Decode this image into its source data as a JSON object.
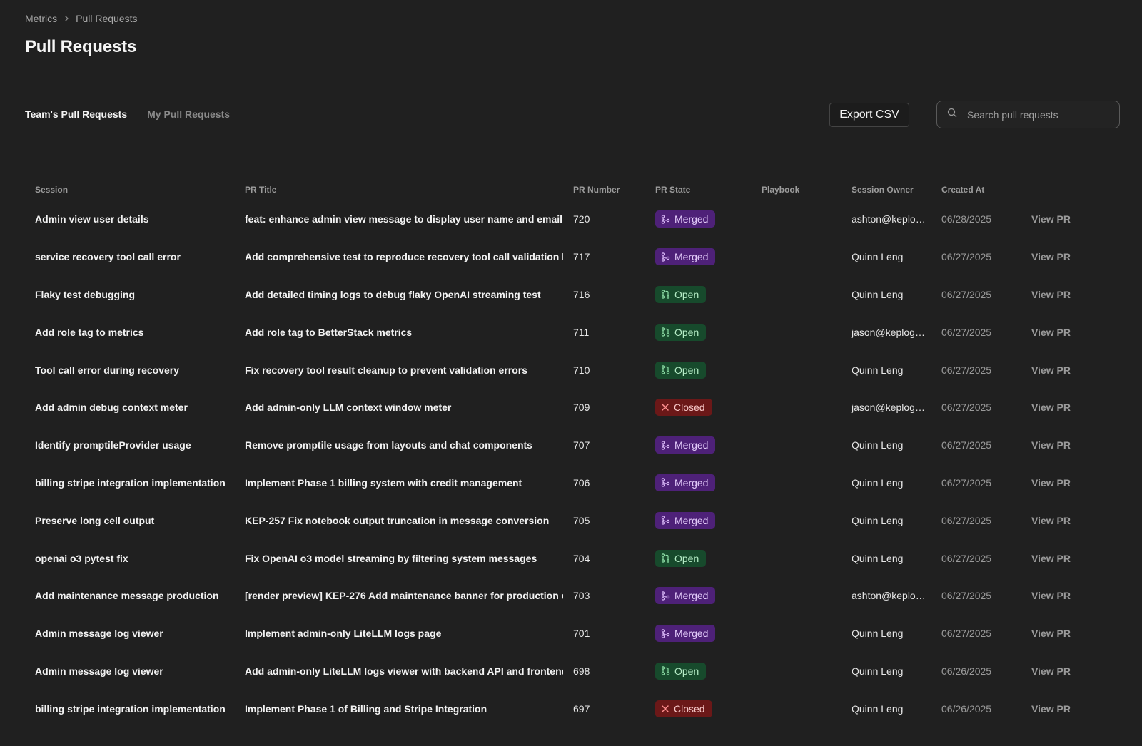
{
  "breadcrumb": {
    "parent": "Metrics",
    "current": "Pull Requests"
  },
  "page": {
    "title": "Pull Requests"
  },
  "tabs": [
    {
      "label": "Team's Pull Requests",
      "active": true
    },
    {
      "label": "My Pull Requests",
      "active": false
    }
  ],
  "toolbar": {
    "export_label": "Export CSV"
  },
  "search": {
    "placeholder": "Search pull requests",
    "value": ""
  },
  "colors": {
    "merged": "#4e2178",
    "open": "#174a2c",
    "closed": "#6b1818",
    "background": "#202020"
  },
  "table": {
    "headers": [
      "Session",
      "PR Title",
      "PR Number",
      "PR State",
      "Playbook",
      "Session Owner",
      "Created At",
      ""
    ],
    "rows": [
      {
        "session": "Admin view user details",
        "title": "feat: enhance admin view message to display user name and email",
        "number": "720",
        "state": "Merged",
        "playbook": "",
        "owner": "ashton@keplogi...",
        "created": "06/28/2025",
        "action": "View PR"
      },
      {
        "session": "service recovery tool call error",
        "title": "Add comprehensive test to reproduce recovery tool call validation b",
        "number": "717",
        "state": "Merged",
        "playbook": "",
        "owner": "Quinn Leng",
        "created": "06/27/2025",
        "action": "View PR"
      },
      {
        "session": "Flaky test debugging",
        "title": "Add detailed timing logs to debug flaky OpenAI streaming test",
        "number": "716",
        "state": "Open",
        "playbook": "",
        "owner": "Quinn Leng",
        "created": "06/27/2025",
        "action": "View PR"
      },
      {
        "session": "Add role tag to metrics",
        "title": "Add role tag to BetterStack metrics",
        "number": "711",
        "state": "Open",
        "playbook": "",
        "owner": "jason@keplogic....",
        "created": "06/27/2025",
        "action": "View PR"
      },
      {
        "session": "Tool call error during recovery",
        "title": "Fix recovery tool result cleanup to prevent validation errors",
        "number": "710",
        "state": "Open",
        "playbook": "",
        "owner": "Quinn Leng",
        "created": "06/27/2025",
        "action": "View PR"
      },
      {
        "session": "Add admin debug context meter",
        "title": "Add admin-only LLM context window meter",
        "number": "709",
        "state": "Closed",
        "playbook": "",
        "owner": "jason@keplogic....",
        "created": "06/27/2025",
        "action": "View PR"
      },
      {
        "session": "Identify promptileProvider usage",
        "title": "Remove promptile usage from layouts and chat components",
        "number": "707",
        "state": "Merged",
        "playbook": "",
        "owner": "Quinn Leng",
        "created": "06/27/2025",
        "action": "View PR"
      },
      {
        "session": "billing stripe integration implementation",
        "title": "Implement Phase 1 billing system with credit management",
        "number": "706",
        "state": "Merged",
        "playbook": "",
        "owner": "Quinn Leng",
        "created": "06/27/2025",
        "action": "View PR"
      },
      {
        "session": "Preserve long cell output",
        "title": "KEP-257 Fix notebook output truncation in message conversion",
        "number": "705",
        "state": "Merged",
        "playbook": "",
        "owner": "Quinn Leng",
        "created": "06/27/2025",
        "action": "View PR"
      },
      {
        "session": "openai o3 pytest fix",
        "title": "Fix OpenAI o3 model streaming by filtering system messages",
        "number": "704",
        "state": "Open",
        "playbook": "",
        "owner": "Quinn Leng",
        "created": "06/27/2025",
        "action": "View PR"
      },
      {
        "session": "Add maintenance message production",
        "title": "[render preview] KEP-276 Add maintenance banner for production e",
        "number": "703",
        "state": "Merged",
        "playbook": "",
        "owner": "ashton@keplogi...",
        "created": "06/27/2025",
        "action": "View PR"
      },
      {
        "session": "Admin message log viewer",
        "title": "Implement admin-only LiteLLM logs page",
        "number": "701",
        "state": "Merged",
        "playbook": "",
        "owner": "Quinn Leng",
        "created": "06/27/2025",
        "action": "View PR"
      },
      {
        "session": "Admin message log viewer",
        "title": "Add admin-only LiteLLM logs viewer with backend API and frontend",
        "number": "698",
        "state": "Open",
        "playbook": "",
        "owner": "Quinn Leng",
        "created": "06/26/2025",
        "action": "View PR"
      },
      {
        "session": "billing stripe integration implementation",
        "title": "Implement Phase 1 of Billing and Stripe Integration",
        "number": "697",
        "state": "Closed",
        "playbook": "",
        "owner": "Quinn Leng",
        "created": "06/26/2025",
        "action": "View PR"
      }
    ]
  }
}
